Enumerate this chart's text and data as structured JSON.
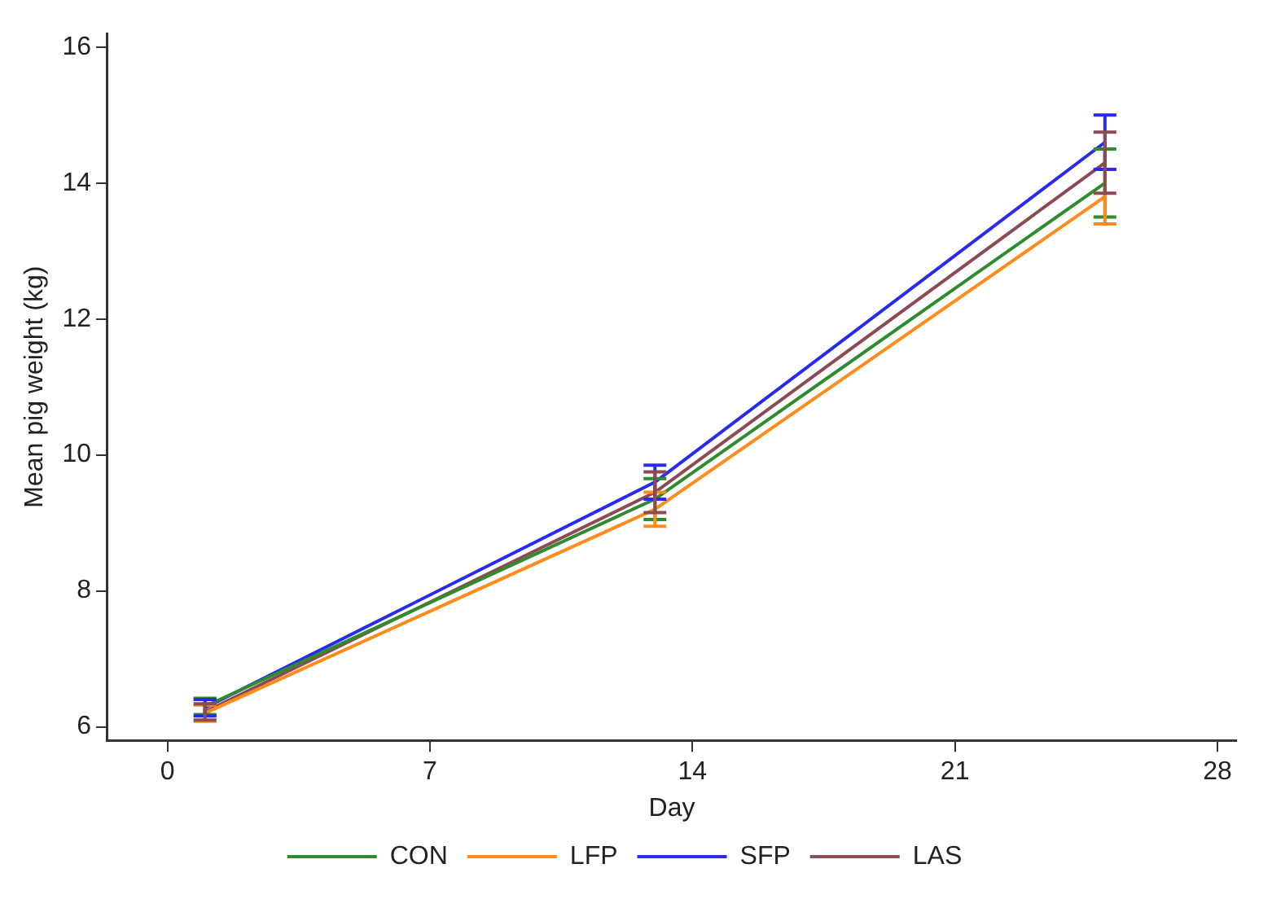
{
  "chart_data": {
    "type": "line",
    "xlabel": "Day",
    "ylabel": "Mean pig weight (kg)",
    "x": [
      1,
      13,
      25
    ],
    "series": [
      {
        "name": "CON",
        "color": "#2e8b2e",
        "values": [
          6.3,
          9.35,
          14.0
        ],
        "errors": [
          0.12,
          0.3,
          0.5
        ]
      },
      {
        "name": "LFP",
        "color": "#ff8c1a",
        "values": [
          6.2,
          9.2,
          13.8
        ],
        "errors": [
          0.12,
          0.25,
          0.4
        ]
      },
      {
        "name": "SFP",
        "color": "#2a2aee",
        "values": [
          6.28,
          9.6,
          14.6
        ],
        "errors": [
          0.12,
          0.25,
          0.4
        ]
      },
      {
        "name": "LAS",
        "color": "#8c4a52",
        "values": [
          6.22,
          9.45,
          14.3
        ],
        "errors": [
          0.12,
          0.3,
          0.45
        ]
      }
    ],
    "xlim": [
      -1.6,
      28.5
    ],
    "xticks": [
      0,
      7,
      14,
      21,
      28
    ],
    "ylim": [
      5.8,
      16.2
    ],
    "yticks": [
      6,
      8,
      10,
      12,
      14,
      16
    ],
    "grid": false,
    "legend": "bottom",
    "marker": "none",
    "line_style": "solid"
  }
}
